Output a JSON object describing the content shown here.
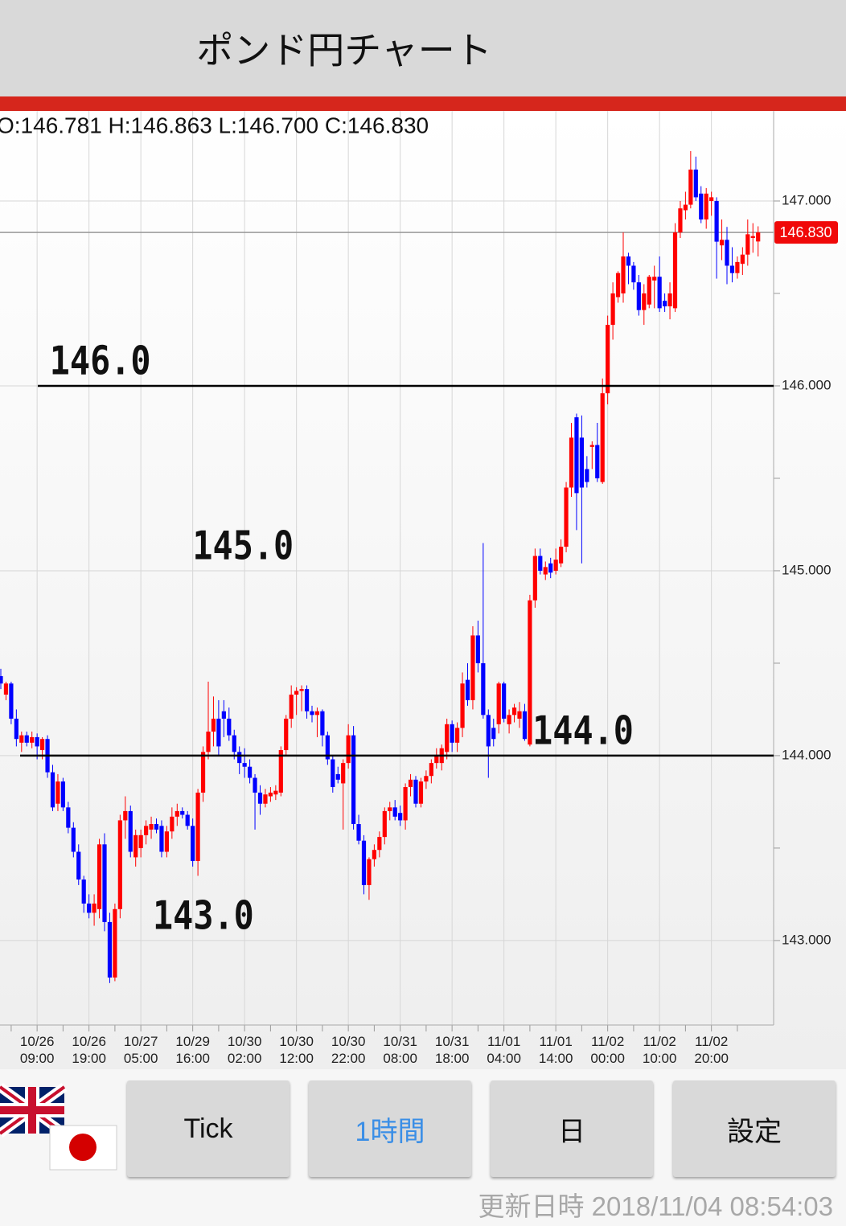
{
  "header": {
    "title": "ポンド円チャート"
  },
  "chart_data": {
    "type": "candlestick",
    "ohlc_label": "O:146.781 H:146.863 L:146.700 C:146.830",
    "last_price": {
      "value": 146.83,
      "label": "146.830"
    },
    "up_color": "#ff0000",
    "down_color": "#0000ff",
    "ylim": [
      142.543,
      147.487
    ],
    "yticks": [
      {
        "value": 143,
        "label": "143.000"
      },
      {
        "value": 144,
        "label": "144.000"
      },
      {
        "value": 145,
        "label": "145.000"
      },
      {
        "value": 146,
        "label": "146.000"
      },
      {
        "value": 147,
        "label": "147.000"
      }
    ],
    "minor_yticks": [
      143.5,
      144.5,
      145.5,
      146.5
    ],
    "grid": true,
    "annotations": [
      {
        "label": "146.0",
        "value": 146,
        "line": true
      },
      {
        "label": "145.0",
        "value": 145,
        "line": false
      },
      {
        "label": "144.0",
        "value": 144,
        "line": true
      },
      {
        "label": "143.0",
        "value": 143,
        "line": false
      }
    ],
    "categories": [
      null,
      null,
      null,
      null,
      null,
      null,
      null,
      "10/26\n09:00",
      null,
      null,
      null,
      null,
      null,
      null,
      null,
      null,
      null,
      "10/26\n19:00",
      null,
      null,
      null,
      null,
      null,
      null,
      null,
      null,
      null,
      "10/27\n05:00",
      null,
      null,
      null,
      null,
      null,
      null,
      null,
      null,
      null,
      "10/29\n16:00",
      null,
      null,
      null,
      null,
      null,
      null,
      null,
      null,
      null,
      "10/30\n02:00",
      null,
      null,
      null,
      null,
      null,
      null,
      null,
      null,
      null,
      "10/30\n12:00",
      null,
      null,
      null,
      null,
      null,
      null,
      null,
      null,
      null,
      "10/30\n22:00",
      null,
      null,
      null,
      null,
      null,
      null,
      null,
      null,
      null,
      "10/31\n08:00",
      null,
      null,
      null,
      null,
      null,
      null,
      null,
      null,
      null,
      "10/31\n18:00",
      null,
      null,
      null,
      null,
      null,
      null,
      null,
      null,
      null,
      "11/01\n04:00",
      null,
      null,
      null,
      null,
      null,
      null,
      null,
      null,
      null,
      "11/01\n14:00",
      null,
      null,
      null,
      null,
      null,
      null,
      null,
      null,
      null,
      "11/02\n00:00",
      null,
      null,
      null,
      null,
      null,
      null,
      null,
      null,
      null,
      "11/02\n10:00",
      null,
      null,
      null,
      null,
      null,
      null,
      null,
      null,
      null,
      "11/02\n20:00",
      null,
      null,
      null,
      null,
      null,
      null,
      null,
      null,
      null
    ],
    "open": [
      144.43,
      144.33,
      144.39,
      144.2,
      144.07,
      144.11,
      144.07,
      144.1,
      144.03,
      144.09,
      143.91,
      143.74,
      143.86,
      143.72,
      143.61,
      143.48,
      143.33,
      143.2,
      143.15,
      143.17,
      143.52,
      143.1,
      142.8,
      143.17,
      143.65,
      143.7,
      143.45,
      143.5,
      143.57,
      143.6,
      143.63,
      143.62,
      143.48,
      143.59,
      143.67,
      143.7,
      143.68,
      143.62,
      143.43,
      143.8,
      144.02,
      144.13,
      144.2,
      144.24,
      144.2,
      144.11,
      144.02,
      143.96,
      143.94,
      143.88,
      143.8,
      143.74,
      143.78,
      143.79,
      143.8,
      144.03,
      144.2,
      144.33,
      144.35,
      144.36,
      144.24,
      144.22,
      144.24,
      144.11,
      143.98,
      143.9,
      143.85,
      143.96,
      144.11,
      143.63,
      143.54,
      143.3,
      143.44,
      143.49,
      143.56,
      143.7,
      143.72,
      143.69,
      143.65,
      143.83,
      143.87,
      143.74,
      143.86,
      143.89,
      143.96,
      143.96,
      144.02,
      144.17,
      144.07,
      144.15,
      144.41,
      144.3,
      144.65,
      144.5,
      144.22,
      144.15,
      144.17,
      144.39,
      144.17,
      144.22,
      144.2,
      144.24,
      144.06,
      144.84,
      145.08,
      144.98,
      145.04,
      145.0,
      145.04,
      145.13,
      145.45,
      145.83,
      145.72,
      145.55,
      145.67,
      145.68,
      145.48,
      145.96,
      146.33,
      146.48,
      146.5,
      146.7,
      146.65,
      146.56,
      146.41,
      146.44,
      146.57,
      146.59,
      146.46,
      146.43,
      146.42,
      146.83,
      146.95,
      146.98,
      147.17,
      147.04,
      146.9,
      147.0,
      147.0,
      146.76,
      146.79,
      146.65,
      146.61,
      146.66,
      146.71,
      146.8,
      146.781
    ],
    "high": [
      144.47,
      144.4,
      144.4,
      144.25,
      144.13,
      144.13,
      144.13,
      144.12,
      144.1,
      144.11,
      143.95,
      143.9,
      143.88,
      143.75,
      143.64,
      143.52,
      143.35,
      143.25,
      143.25,
      143.55,
      143.58,
      143.15,
      143.2,
      143.68,
      143.78,
      143.73,
      143.6,
      143.6,
      143.65,
      143.67,
      143.66,
      143.65,
      143.62,
      143.72,
      143.74,
      143.72,
      143.7,
      143.66,
      143.82,
      144.05,
      144.4,
      144.32,
      144.3,
      144.3,
      144.26,
      144.14,
      144.05,
      144.04,
      143.98,
      143.9,
      143.84,
      143.82,
      143.83,
      143.84,
      144.05,
      144.22,
      144.38,
      144.37,
      144.38,
      144.38,
      144.27,
      144.26,
      144.25,
      144.13,
      144.0,
      143.94,
      143.98,
      144.17,
      144.16,
      143.68,
      143.57,
      143.45,
      143.52,
      143.59,
      143.72,
      143.75,
      143.76,
      143.73,
      143.85,
      143.9,
      143.89,
      143.88,
      143.92,
      143.98,
      144.04,
      144.06,
      144.2,
      144.19,
      144.18,
      144.45,
      144.5,
      144.7,
      144.73,
      145.15,
      144.25,
      144.2,
      144.4,
      144.4,
      144.25,
      144.28,
      144.29,
      144.28,
      144.87,
      145.12,
      145.12,
      145.05,
      145.07,
      145.12,
      145.17,
      145.48,
      145.8,
      145.85,
      145.84,
      145.62,
      145.7,
      145.8,
      146.04,
      146.38,
      146.56,
      146.62,
      146.83,
      146.72,
      146.67,
      146.6,
      146.55,
      146.6,
      146.65,
      146.7,
      146.5,
      146.56,
      146.88,
      147.0,
      147.05,
      147.27,
      147.24,
      147.08,
      147.07,
      147.05,
      147.02,
      146.9,
      146.86,
      146.75,
      146.7,
      146.75,
      146.9,
      146.88,
      146.863
    ],
    "low": [
      144.36,
      144.3,
      144.17,
      144.05,
      144.02,
      144.05,
      144.04,
      143.98,
      143.98,
      143.88,
      143.7,
      143.7,
      143.7,
      143.58,
      143.45,
      143.3,
      143.15,
      143.12,
      143.08,
      143.12,
      143.05,
      142.77,
      142.78,
      143.12,
      143.55,
      143.45,
      143.4,
      143.45,
      143.52,
      143.55,
      143.58,
      143.45,
      143.45,
      143.55,
      143.62,
      143.66,
      143.6,
      143.4,
      143.35,
      143.75,
      143.98,
      144.05,
      144.0,
      144.1,
      144.08,
      143.98,
      143.9,
      143.88,
      143.85,
      143.6,
      143.68,
      143.72,
      143.75,
      143.76,
      143.78,
      144.0,
      144.15,
      144.22,
      144.24,
      144.2,
      144.18,
      144.1,
      144.05,
      143.95,
      143.8,
      143.85,
      143.6,
      143.93,
      143.6,
      143.52,
      143.25,
      143.22,
      143.4,
      143.45,
      143.52,
      143.65,
      143.65,
      143.62,
      143.6,
      143.78,
      143.72,
      143.72,
      143.82,
      143.85,
      143.93,
      143.92,
      143.98,
      144.02,
      144.02,
      144.1,
      144.27,
      144.25,
      144.45,
      144.2,
      143.88,
      144.05,
      144.12,
      144.18,
      144.12,
      144.18,
      144.15,
      144.08,
      144.05,
      144.8,
      144.98,
      144.95,
      144.96,
      144.98,
      145.02,
      145.1,
      145.4,
      145.22,
      145.04,
      145.45,
      145.55,
      145.48,
      145.47,
      145.9,
      146.25,
      146.45,
      146.45,
      146.55,
      146.52,
      146.38,
      146.33,
      146.42,
      146.42,
      146.4,
      146.4,
      146.36,
      146.4,
      146.8,
      146.9,
      146.96,
      147.0,
      146.88,
      146.85,
      146.92,
      146.58,
      146.68,
      146.55,
      146.56,
      146.58,
      146.6,
      146.65,
      146.72,
      146.7
    ],
    "close": [
      144.39,
      144.39,
      144.2,
      144.09,
      144.11,
      144.07,
      144.1,
      144.05,
      144.09,
      143.91,
      143.72,
      143.86,
      143.72,
      143.61,
      143.48,
      143.33,
      143.2,
      143.15,
      143.2,
      143.52,
      143.1,
      142.8,
      143.17,
      143.65,
      143.7,
      143.48,
      143.57,
      143.57,
      143.62,
      143.63,
      143.6,
      143.48,
      143.59,
      143.67,
      143.7,
      143.68,
      143.62,
      143.43,
      143.8,
      144.02,
      144.13,
      144.2,
      144.05,
      144.2,
      144.11,
      144.02,
      143.96,
      143.94,
      143.88,
      143.8,
      143.74,
      143.79,
      143.8,
      143.81,
      144.03,
      144.2,
      144.33,
      144.35,
      144.36,
      144.24,
      144.22,
      144.24,
      144.11,
      143.98,
      143.83,
      143.87,
      143.96,
      144.11,
      143.63,
      143.54,
      143.3,
      143.44,
      143.49,
      143.56,
      143.7,
      143.72,
      143.67,
      143.65,
      143.83,
      143.87,
      143.74,
      143.86,
      143.89,
      143.96,
      144.0,
      144.04,
      144.17,
      144.07,
      144.15,
      144.39,
      144.3,
      144.65,
      144.5,
      144.22,
      144.05,
      144.09,
      144.39,
      144.2,
      144.22,
      144.26,
      144.24,
      144.09,
      144.84,
      145.08,
      145.0,
      145.02,
      144.99,
      145.06,
      145.13,
      145.45,
      145.72,
      145.42,
      145.45,
      145.48,
      145.68,
      145.5,
      145.96,
      146.33,
      146.5,
      146.61,
      146.7,
      146.65,
      146.56,
      146.41,
      146.5,
      146.59,
      146.59,
      146.42,
      146.43,
      146.5,
      146.83,
      146.96,
      146.98,
      147.17,
      147.02,
      146.9,
      147.04,
      147.02,
      146.78,
      146.79,
      146.65,
      146.61,
      146.67,
      146.71,
      146.82,
      146.81,
      146.83
    ]
  },
  "buttons": [
    "Tick",
    "1時間",
    "日",
    "設定"
  ],
  "footer": {
    "updated": "更新日時 2018/11/04 08:54:03"
  }
}
